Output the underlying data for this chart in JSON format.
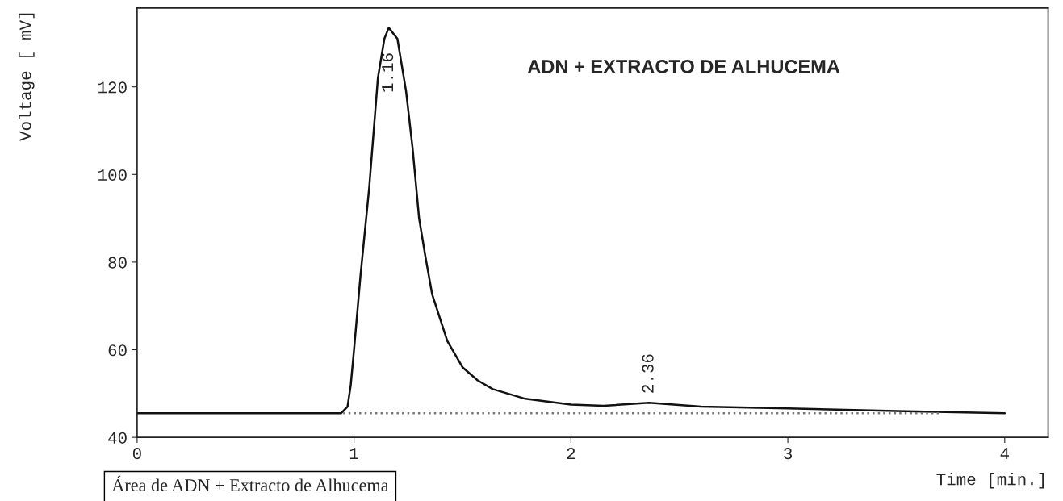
{
  "chart_data": {
    "type": "line",
    "title": "ADN + EXTRACTO DE ALHUCEMA",
    "xlabel": "Time [min.]",
    "ylabel": "Voltage [ mV]",
    "series": [
      {
        "color": "#111111",
        "line_style": "solid",
        "x": [
          0,
          0.5,
          0.94,
          0.97,
          0.985,
          1.0,
          1.03,
          1.07,
          1.11,
          1.14,
          1.16,
          1.2,
          1.24,
          1.27,
          1.3,
          1.33,
          1.36,
          1.43,
          1.5,
          1.57,
          1.64,
          1.79,
          2.0,
          2.15,
          2.36,
          2.6,
          3.0,
          3.5,
          4.0
        ],
        "values": [
          45.5,
          45.5,
          45.5,
          47,
          52,
          60,
          77,
          97,
          122,
          131,
          133.5,
          131,
          119,
          106,
          90,
          81,
          72.7,
          62,
          56,
          53,
          51,
          48.8,
          47.5,
          47.2,
          47.9,
          47.0,
          46.6,
          46.0,
          45.5
        ]
      },
      {
        "color": "#777777",
        "line_style": "dotted",
        "x": [
          0.95,
          3.7
        ],
        "values": [
          45.5,
          45.5
        ]
      }
    ],
    "annotations": [
      {
        "text": "1.16",
        "x": 1.16,
        "y": 133.5
      },
      {
        "text": "2.36",
        "x": 2.36,
        "y": 47.9
      },
      "Área de ADN + Extracto de Alhucema"
    ],
    "xlim": [
      0,
      4.2
    ],
    "ylim": [
      40,
      138
    ],
    "xticks": [
      0,
      1,
      2,
      3,
      4
    ],
    "yticks": [
      40,
      60,
      80,
      100,
      120
    ],
    "grid": false,
    "legend": false
  }
}
